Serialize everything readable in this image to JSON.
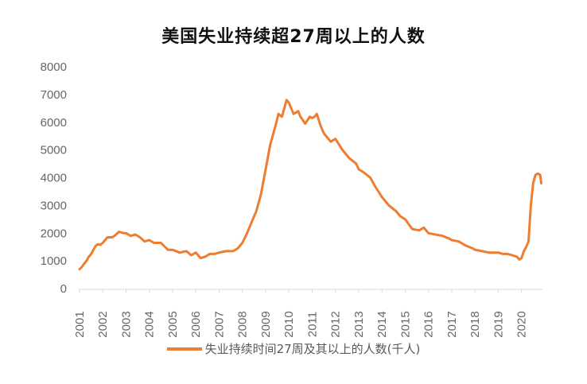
{
  "chart_data": {
    "type": "line",
    "title": "美国失业持续超27周以上的人数",
    "xlabel": "",
    "ylabel": "",
    "ylim": [
      0,
      8000
    ],
    "xlim": [
      2001,
      2020.9
    ],
    "yticks": [
      0,
      1000,
      2000,
      3000,
      4000,
      5000,
      6000,
      7000,
      8000
    ],
    "xticks": [
      "2001",
      "2002",
      "2003",
      "2004",
      "2005",
      "2006",
      "2007",
      "2008",
      "2009",
      "2010",
      "2011",
      "2012",
      "2013",
      "2014",
      "2015",
      "2016",
      "2017",
      "2018",
      "2019",
      "2020"
    ],
    "grid": false,
    "legend_position": "bottom",
    "color": "#ED7D31",
    "series": [
      {
        "name": "失业持续时间27周及其以上的人数(千人)",
        "x": [
          2001.0,
          2001.1,
          2001.2,
          2001.3,
          2001.4,
          2001.5,
          2001.6,
          2001.7,
          2001.8,
          2001.9,
          2002.0,
          2002.2,
          2002.4,
          2002.5,
          2002.7,
          2002.9,
          2003.0,
          2003.2,
          2003.4,
          2003.6,
          2003.8,
          2004.0,
          2004.2,
          2004.5,
          2004.8,
          2005.0,
          2005.3,
          2005.6,
          2005.8,
          2006.0,
          2006.2,
          2006.4,
          2006.6,
          2006.8,
          2007.0,
          2007.3,
          2007.6,
          2007.8,
          2008.0,
          2008.2,
          2008.4,
          2008.6,
          2008.8,
          2009.0,
          2009.2,
          2009.4,
          2009.55,
          2009.7,
          2009.8,
          2009.9,
          2010.0,
          2010.2,
          2010.4,
          2010.5,
          2010.7,
          2010.9,
          2011.0,
          2011.1,
          2011.2,
          2011.35,
          2011.5,
          2011.8,
          2012.0,
          2012.3,
          2012.6,
          2012.9,
          2013.0,
          2013.2,
          2013.5,
          2013.7,
          2014.0,
          2014.3,
          2014.6,
          2014.8,
          2015.0,
          2015.3,
          2015.6,
          2015.8,
          2016.0,
          2016.3,
          2016.6,
          2016.9,
          2017.0,
          2017.3,
          2017.6,
          2017.9,
          2018.0,
          2018.3,
          2018.6,
          2018.9,
          2019.0,
          2019.2,
          2019.4,
          2019.6,
          2019.8,
          2019.9,
          2020.0,
          2020.1,
          2020.2,
          2020.25,
          2020.3,
          2020.4,
          2020.5,
          2020.6,
          2020.7,
          2020.8,
          2020.85
        ],
        "values": [
          700,
          780,
          900,
          1000,
          1150,
          1250,
          1400,
          1550,
          1600,
          1580,
          1650,
          1850,
          1850,
          1900,
          2050,
          2000,
          2000,
          1900,
          1950,
          1850,
          1700,
          1750,
          1650,
          1650,
          1400,
          1400,
          1300,
          1350,
          1200,
          1300,
          1100,
          1150,
          1250,
          1250,
          1300,
          1350,
          1350,
          1450,
          1650,
          2000,
          2400,
          2800,
          3400,
          4300,
          5200,
          5800,
          6300,
          6200,
          6500,
          6800,
          6700,
          6300,
          6400,
          6200,
          5950,
          6200,
          6150,
          6200,
          6300,
          5900,
          5600,
          5300,
          5400,
          5000,
          4700,
          4500,
          4300,
          4200,
          4000,
          3700,
          3300,
          3000,
          2800,
          2600,
          2500,
          2150,
          2100,
          2200,
          2000,
          1950,
          1900,
          1800,
          1750,
          1700,
          1550,
          1450,
          1400,
          1350,
          1300,
          1300,
          1300,
          1250,
          1250,
          1200,
          1150,
          1050,
          1100,
          1350,
          1500,
          1600,
          1700,
          3000,
          3800,
          4100,
          4150,
          4100,
          3800
        ]
      }
    ]
  }
}
